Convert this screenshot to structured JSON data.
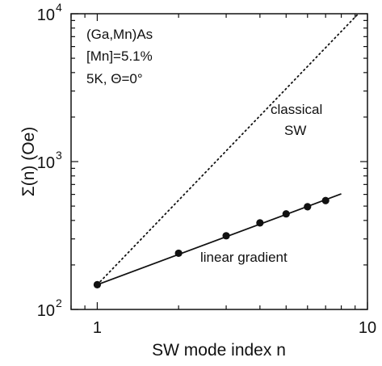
{
  "chart_data": {
    "type": "scatter",
    "xlabel": "SW mode index n",
    "ylabel": "Σ(n) (Oe)",
    "xscale": "log",
    "yscale": "log",
    "xlim": [
      0.8,
      10
    ],
    "ylim": [
      100,
      10000
    ],
    "grid": false,
    "x_ticks": [
      {
        "value": 1,
        "label": "1"
      },
      {
        "value": 10,
        "label": "10"
      }
    ],
    "y_ticks": [
      {
        "value": 100,
        "base": "10",
        "exp": "2"
      },
      {
        "value": 1000,
        "base": "10",
        "exp": "3"
      },
      {
        "value": 10000,
        "base": "10",
        "exp": "4"
      }
    ],
    "annotation_lines": [
      "(Ga,Mn)As",
      "[Mn]=5.1%",
      "5K, Θ=0°"
    ],
    "series": [
      {
        "style": "points",
        "color": "#111111",
        "x": [
          1,
          2,
          3,
          4,
          5,
          6,
          7
        ],
        "y": [
          147,
          240,
          315,
          385,
          443,
          495,
          545
        ]
      },
      {
        "name": "linear gradient",
        "style": "solid-line",
        "color": "#111111",
        "x": [
          1,
          8
        ],
        "y": [
          147,
          605
        ]
      },
      {
        "name": "classical SW",
        "style": "dotted-line",
        "color": "#111111",
        "x": [
          1,
          9.25
        ],
        "y": [
          147,
          10000
        ]
      }
    ],
    "series_labels": {
      "linear_gradient": "linear gradient",
      "classical_line1": "classical",
      "classical_line2": "SW"
    }
  }
}
